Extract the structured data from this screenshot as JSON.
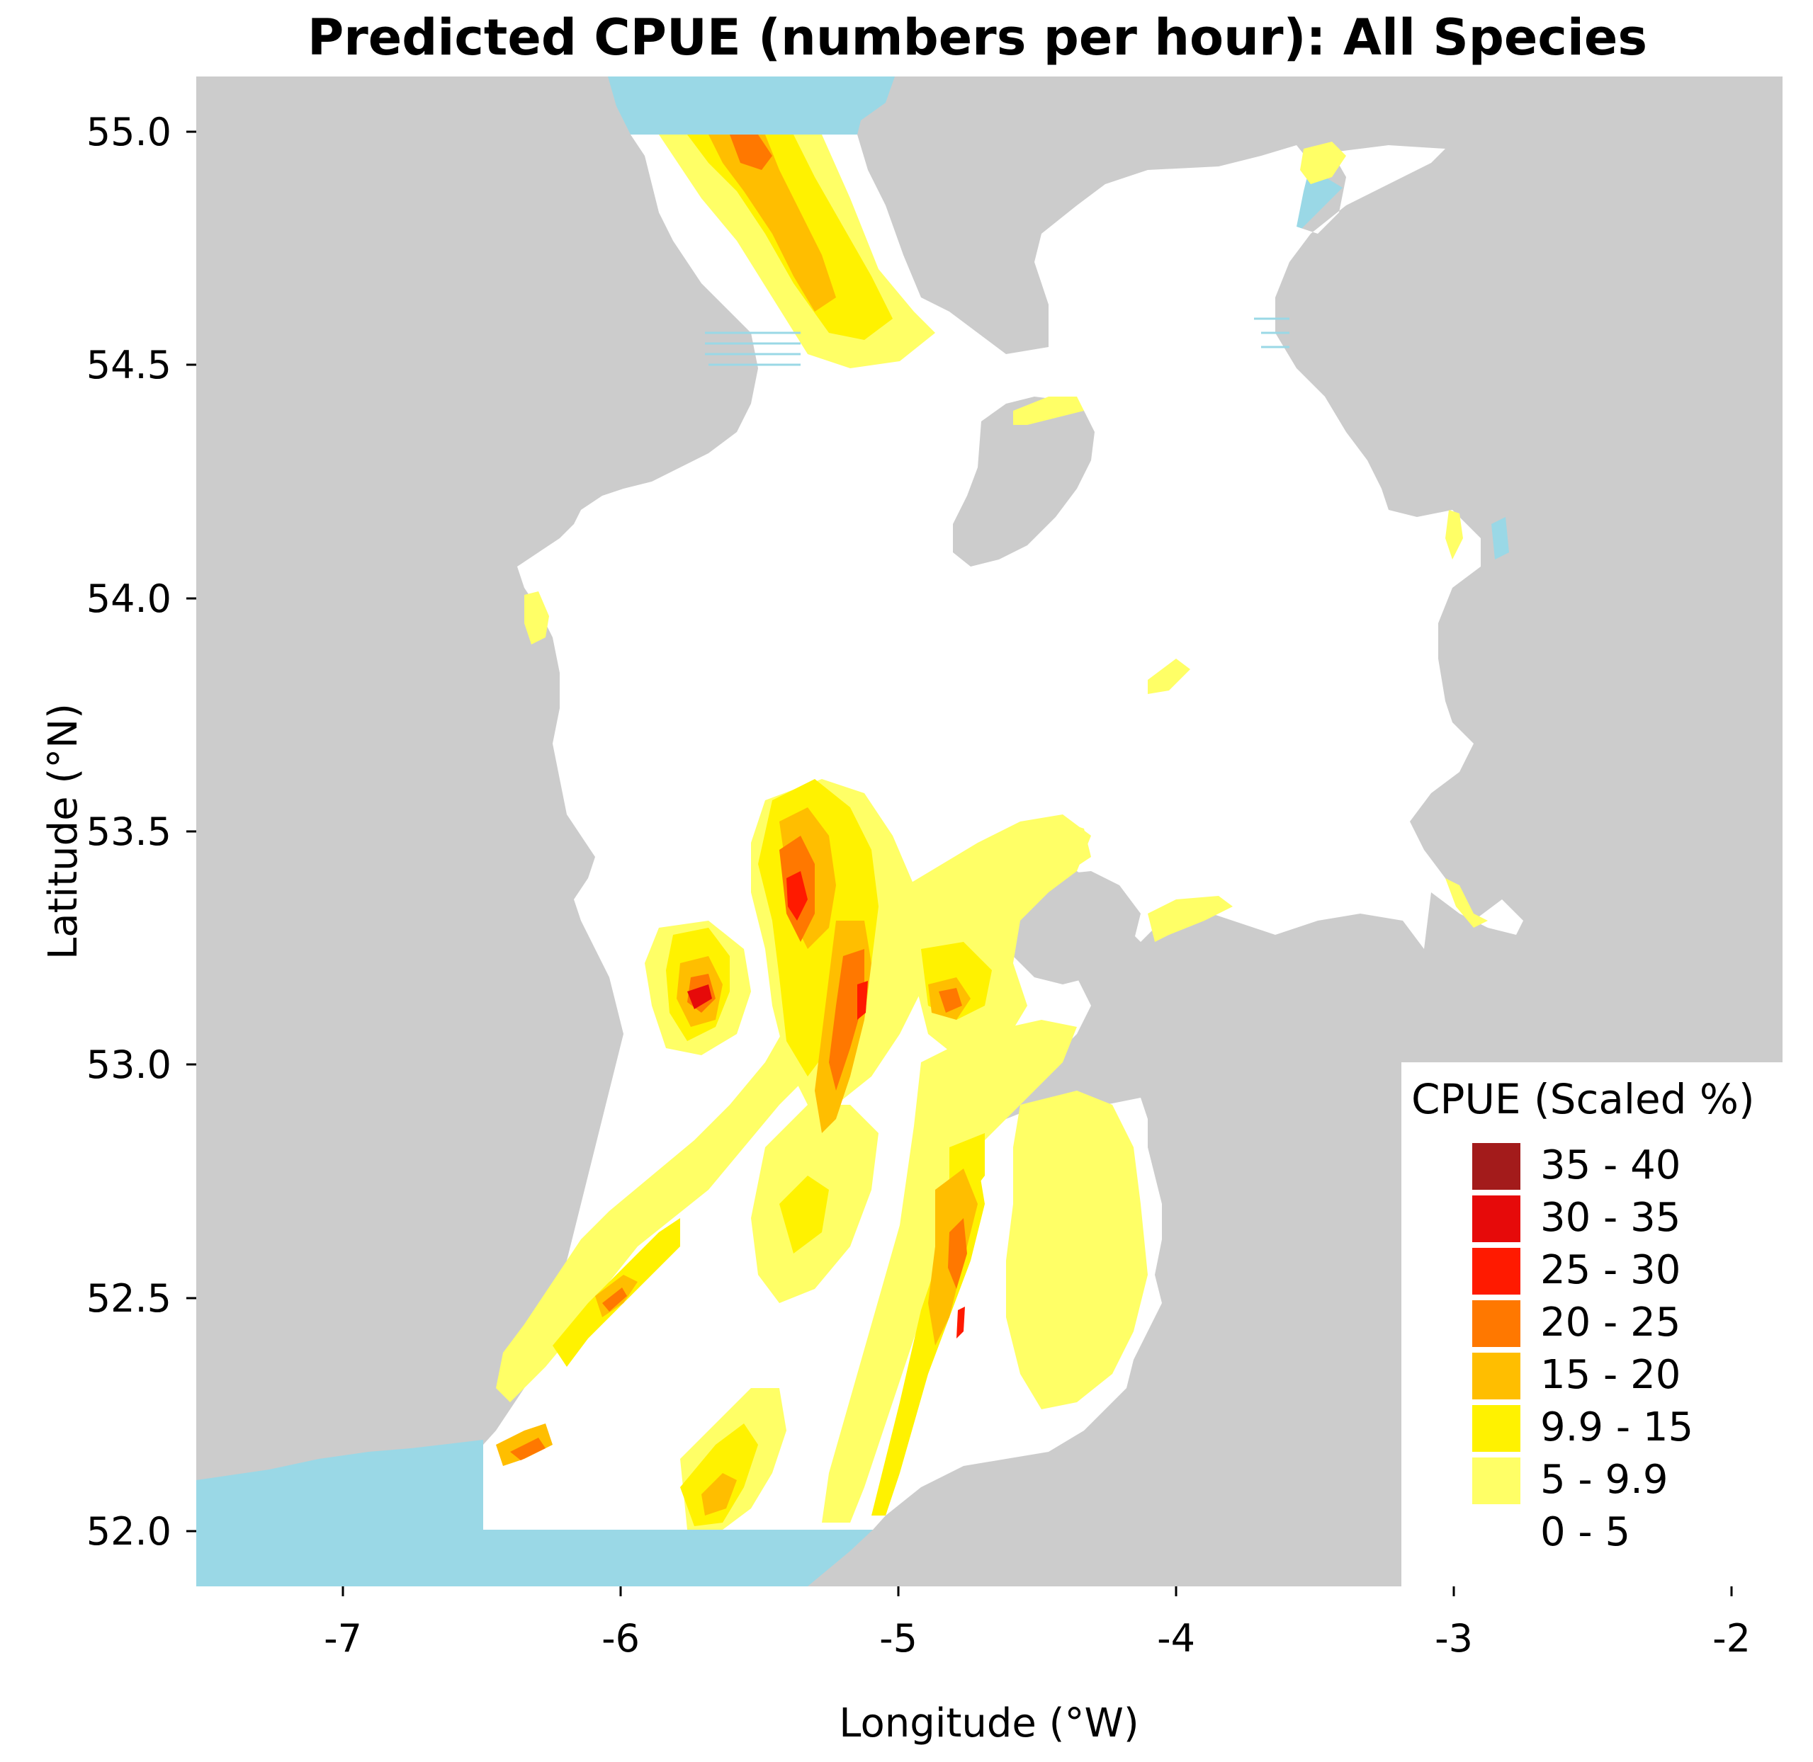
{
  "title": "Predicted CPUE (numbers per hour): All Species",
  "axes": {
    "x_label": "Longitude (°W)",
    "y_label": "Latitude (°N)",
    "x_ticks": [
      -7,
      -6,
      -5,
      -4,
      -3,
      -2
    ],
    "x_tick_labels": [
      "-7",
      "-6",
      "-5",
      "-4",
      "-3",
      "-2"
    ],
    "y_ticks": [
      52.0,
      52.5,
      53.0,
      53.5,
      54.0,
      54.5,
      55.0
    ],
    "y_tick_labels": [
      "52.0",
      "52.5",
      "53.0",
      "53.5",
      "54.0",
      "54.5",
      "55.0"
    ],
    "x_range": [
      -7.55,
      -1.82
    ],
    "y_range": [
      51.88,
      55.12
    ]
  },
  "colors": {
    "land": "#cccccc",
    "sea_outside": "#9ad8e6",
    "model_area": "#ffffff"
  },
  "legend": {
    "title": "CPUE (Scaled %)",
    "position": "bottom-right",
    "items": [
      {
        "label": "35 - 40",
        "color": "#a31b1b"
      },
      {
        "label": "30 - 35",
        "color": "#e60a0a"
      },
      {
        "label": "25 - 30",
        "color": "#ff1a00"
      },
      {
        "label": "20 - 25",
        "color": "#ff7800"
      },
      {
        "label": "15 - 20",
        "color": "#ffbe00"
      },
      {
        "label": "9.9 - 15",
        "color": "#fff200"
      },
      {
        "label": "5 - 9.9",
        "color": "#ffff66"
      },
      {
        "label": "0 - 5",
        "color": "#ffffff"
      }
    ]
  }
}
